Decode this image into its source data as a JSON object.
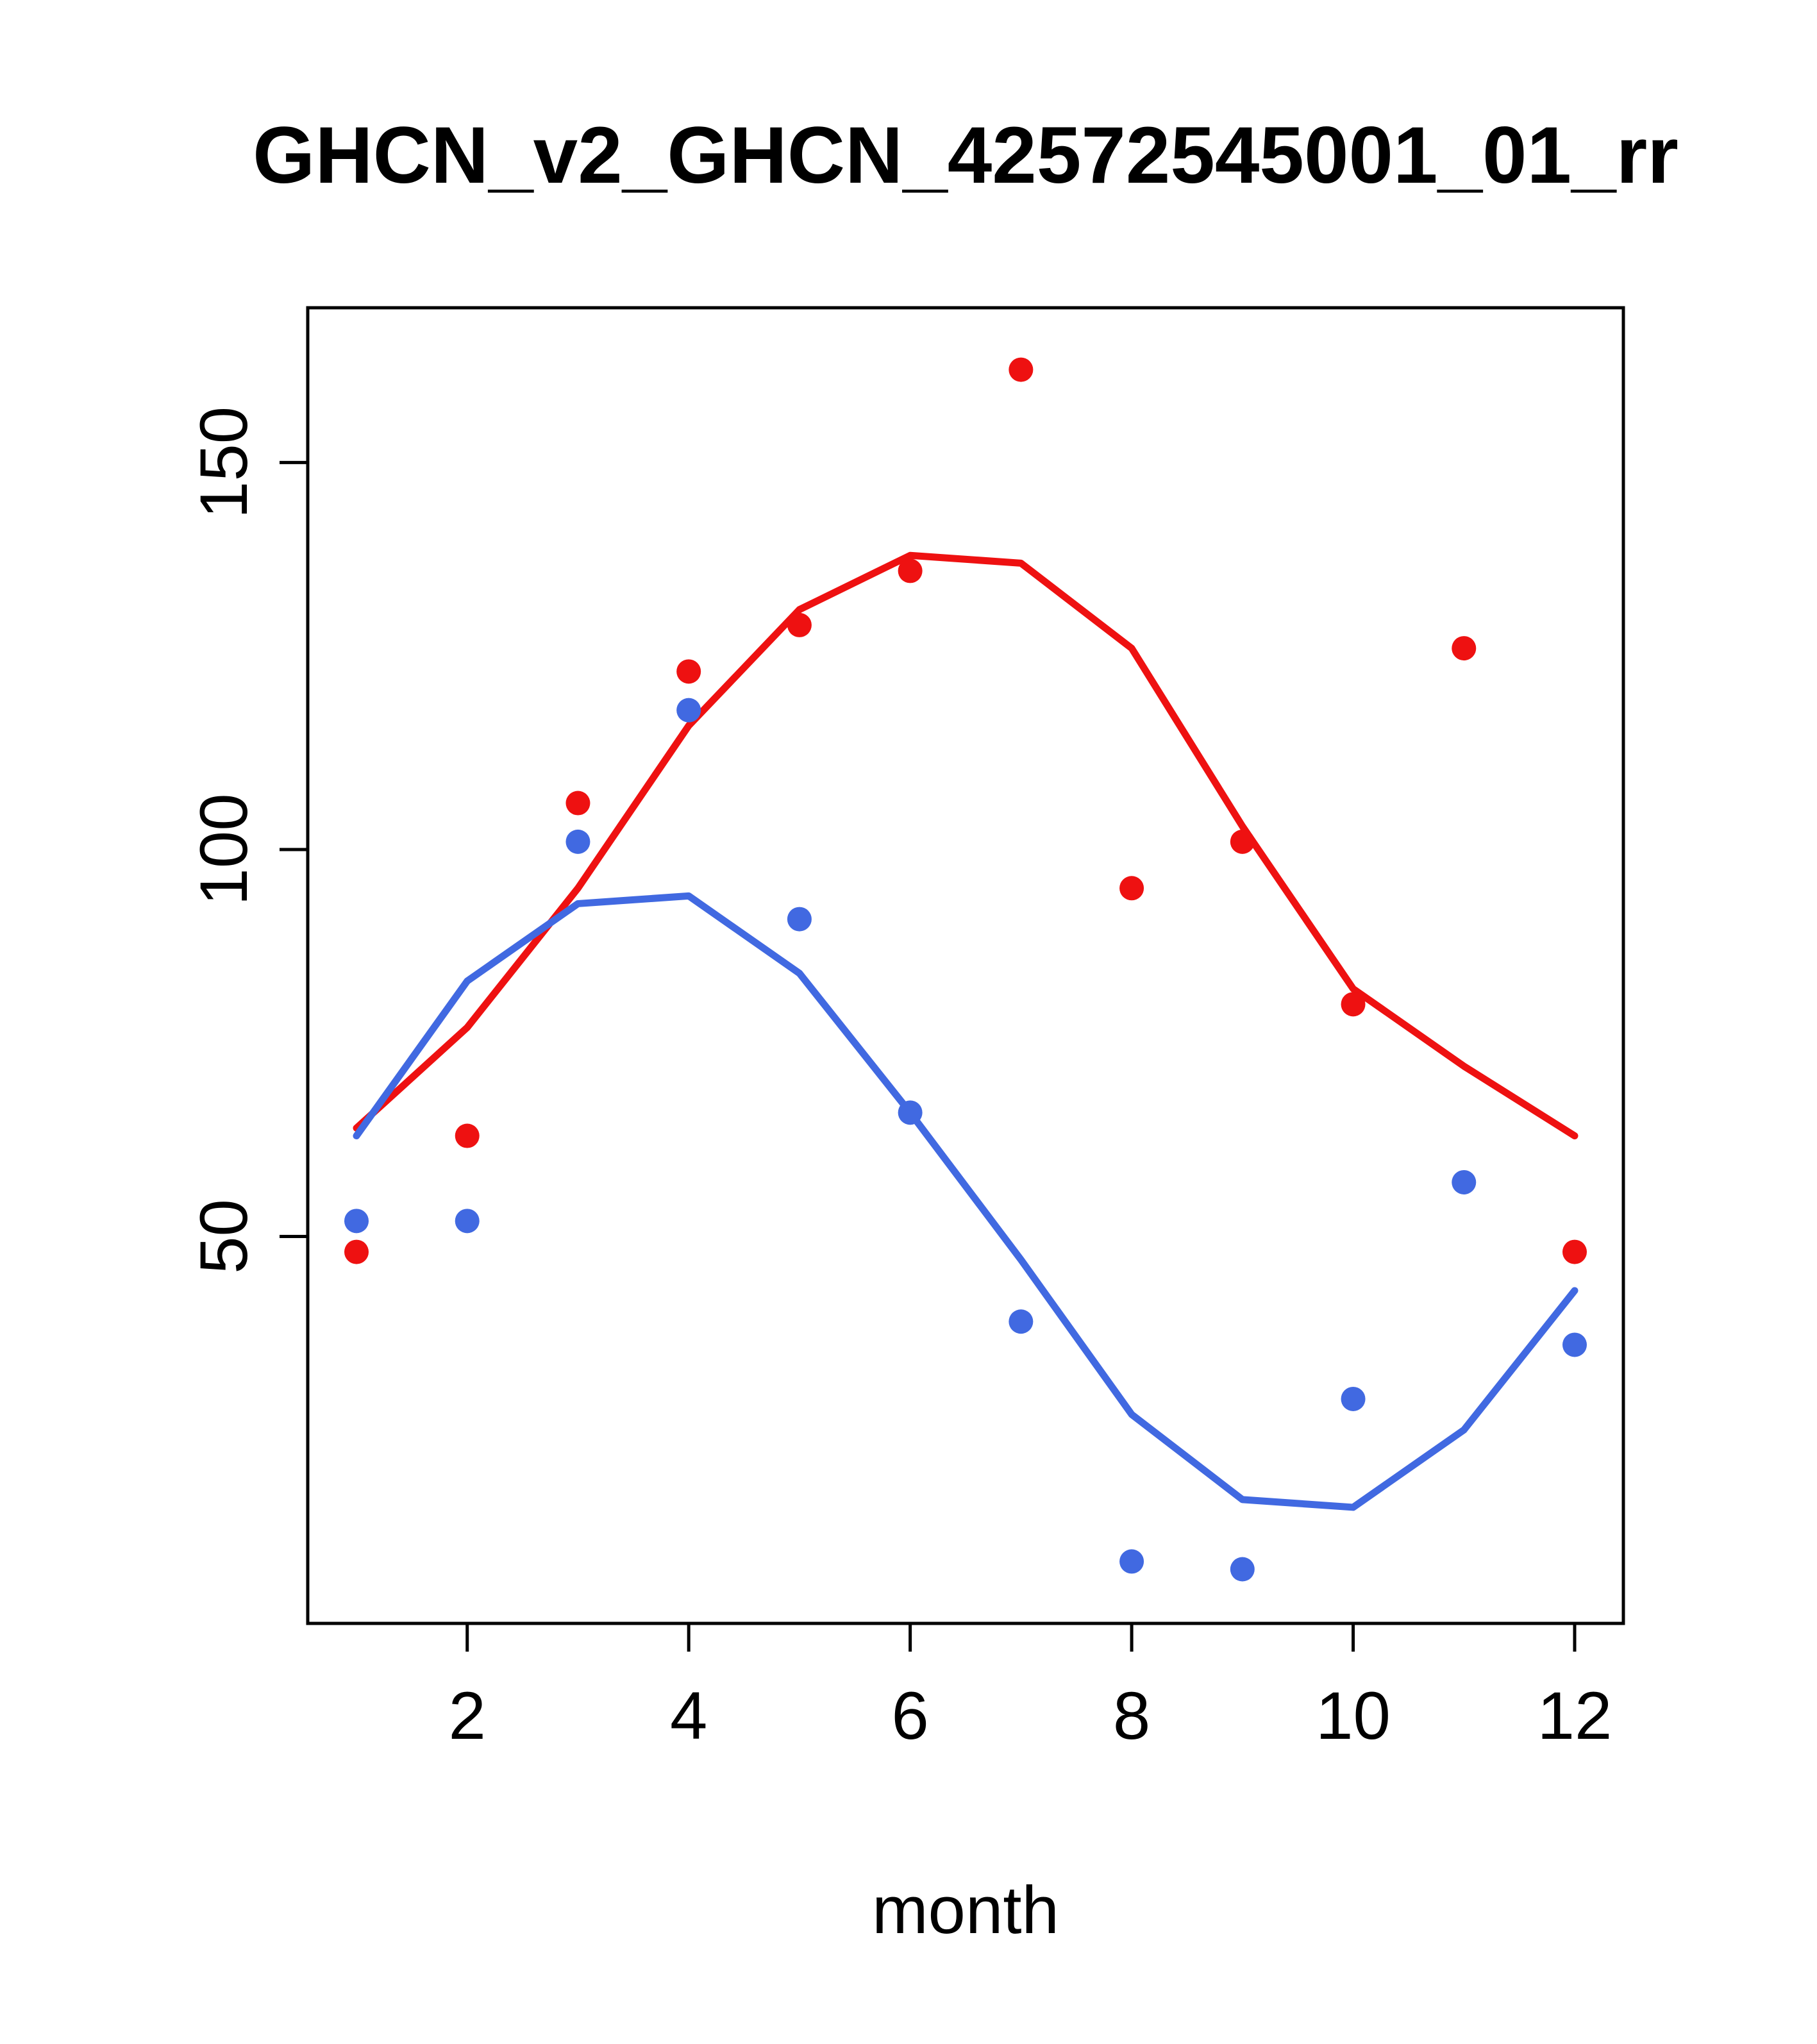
{
  "chart_data": {
    "type": "scatter",
    "title": "GHCN_v2_GHCN_42572545001_01_rr",
    "xlabel": "month",
    "ylabel": "",
    "x": [
      1,
      2,
      3,
      4,
      5,
      6,
      7,
      8,
      9,
      10,
      11,
      12
    ],
    "xlim": [
      0.56,
      12.44
    ],
    "ylim": [
      0,
      170
    ],
    "xticks": [
      2,
      4,
      6,
      8,
      10,
      12
    ],
    "yticks": [
      50,
      100,
      150
    ],
    "grid": false,
    "legend": "none",
    "colors": {
      "red": "#ee1111",
      "blue": "#4169e1",
      "axis": "#000000",
      "background": "#ffffff"
    },
    "series": [
      {
        "name": "red-smooth-line",
        "type": "line",
        "color": "#ee1111",
        "values": [
          64,
          77,
          95,
          116,
          131,
          138,
          137,
          126,
          103,
          82,
          72,
          63
        ]
      },
      {
        "name": "blue-smooth-line",
        "type": "line",
        "color": "#4169e1",
        "values": [
          63,
          83,
          93,
          94,
          84,
          66,
          47,
          27,
          16,
          15,
          25,
          43
        ]
      },
      {
        "name": "red-points",
        "type": "points",
        "color": "#ee1111",
        "values": [
          48,
          63,
          106,
          123,
          129,
          136,
          162,
          95,
          101,
          80,
          126,
          48
        ]
      },
      {
        "name": "blue-points",
        "type": "points",
        "color": "#4169e1",
        "values": [
          52,
          52,
          101,
          118,
          91,
          66,
          39,
          8,
          7,
          29,
          57,
          36
        ]
      }
    ]
  }
}
